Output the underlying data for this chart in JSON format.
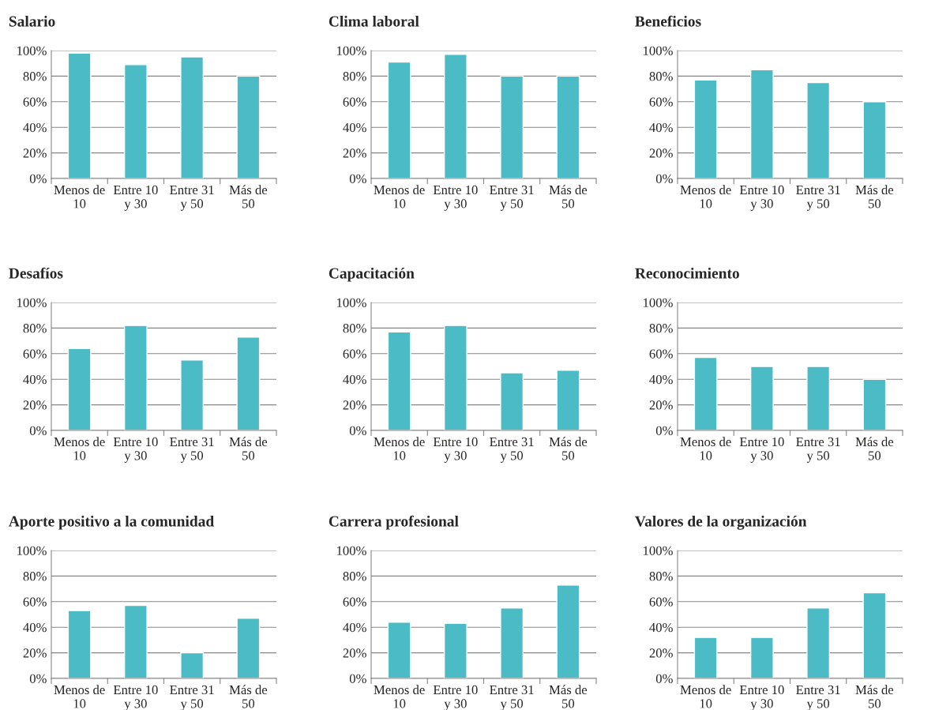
{
  "chart_data": [
    {
      "type": "bar",
      "title": "Salario",
      "categories": [
        "Menos de\n10",
        "Entre 10\ny 30",
        "Entre 31\ny 50",
        "Más de\n50"
      ],
      "values": [
        98,
        89,
        95,
        80
      ],
      "color": "#4bbcc6",
      "ylim": [
        0,
        100
      ],
      "yticks": [
        {
          "value": 0,
          "label": "0%"
        },
        {
          "value": 20,
          "label": "20%"
        },
        {
          "value": 40,
          "label": "40%"
        },
        {
          "value": 60,
          "label": "60%"
        },
        {
          "value": 80,
          "label": "80%"
        },
        {
          "value": 100,
          "label": "100%"
        }
      ],
      "grid": "y"
    },
    {
      "type": "bar",
      "title": "Clima laboral",
      "categories": [
        "Menos de\n10",
        "Entre 10\ny 30",
        "Entre 31\ny 50",
        "Más de\n50"
      ],
      "values": [
        91,
        97,
        80,
        80
      ],
      "color": "#4bbcc6",
      "ylim": [
        0,
        100
      ],
      "yticks": [
        {
          "value": 0,
          "label": "0%"
        },
        {
          "value": 20,
          "label": "20%"
        },
        {
          "value": 40,
          "label": "40%"
        },
        {
          "value": 60,
          "label": "60%"
        },
        {
          "value": 80,
          "label": "80%"
        },
        {
          "value": 100,
          "label": "100%"
        }
      ],
      "grid": "y"
    },
    {
      "type": "bar",
      "title": "Beneficios",
      "categories": [
        "Menos de\n10",
        "Entre 10\ny 30",
        "Entre 31\ny 50",
        "Más de\n50"
      ],
      "values": [
        77,
        85,
        75,
        60
      ],
      "color": "#4bbcc6",
      "ylim": [
        0,
        100
      ],
      "yticks": [
        {
          "value": 0,
          "label": "0%"
        },
        {
          "value": 20,
          "label": "20%"
        },
        {
          "value": 40,
          "label": "40%"
        },
        {
          "value": 60,
          "label": "60%"
        },
        {
          "value": 80,
          "label": "80%"
        },
        {
          "value": 100,
          "label": "100%"
        }
      ],
      "grid": "y"
    },
    {
      "type": "bar",
      "title": "Desafíos",
      "categories": [
        "Menos de\n10",
        "Entre 10\ny 30",
        "Entre 31\ny 50",
        "Más de\n50"
      ],
      "values": [
        64,
        82,
        55,
        73
      ],
      "color": "#4bbcc6",
      "ylim": [
        0,
        100
      ],
      "yticks": [
        {
          "value": 0,
          "label": "0%"
        },
        {
          "value": 20,
          "label": "20%"
        },
        {
          "value": 40,
          "label": "40%"
        },
        {
          "value": 60,
          "label": "60%"
        },
        {
          "value": 80,
          "label": "80%"
        },
        {
          "value": 100,
          "label": "100%"
        }
      ],
      "grid": "y"
    },
    {
      "type": "bar",
      "title": "Capacitación",
      "categories": [
        "Menos de\n10",
        "Entre 10\ny 30",
        "Entre 31\ny 50",
        "Más de\n50"
      ],
      "values": [
        77,
        82,
        45,
        47
      ],
      "color": "#4bbcc6",
      "ylim": [
        0,
        100
      ],
      "yticks": [
        {
          "value": 0,
          "label": "0%"
        },
        {
          "value": 20,
          "label": "20%"
        },
        {
          "value": 40,
          "label": "40%"
        },
        {
          "value": 60,
          "label": "60%"
        },
        {
          "value": 80,
          "label": "80%"
        },
        {
          "value": 100,
          "label": "100%"
        }
      ],
      "grid": "y"
    },
    {
      "type": "bar",
      "title": "Reconocimiento",
      "categories": [
        "Menos de\n10",
        "Entre 10\ny 30",
        "Entre 31\ny 50",
        "Más de\n50"
      ],
      "values": [
        57,
        50,
        50,
        40
      ],
      "color": "#4bbcc6",
      "ylim": [
        0,
        100
      ],
      "yticks": [
        {
          "value": 0,
          "label": "0%"
        },
        {
          "value": 20,
          "label": "20%"
        },
        {
          "value": 40,
          "label": "40%"
        },
        {
          "value": 60,
          "label": "60%"
        },
        {
          "value": 80,
          "label": "80%"
        },
        {
          "value": 100,
          "label": "100%"
        }
      ],
      "grid": "y"
    },
    {
      "type": "bar",
      "title": "Aporte positivo a la comunidad",
      "categories": [
        "Menos de\n10",
        "Entre 10\ny 30",
        "Entre 31\ny 50",
        "Más de\n50"
      ],
      "values": [
        53,
        57,
        20,
        47
      ],
      "color": "#4bbcc6",
      "ylim": [
        0,
        100
      ],
      "yticks": [
        {
          "value": 0,
          "label": "0%"
        },
        {
          "value": 20,
          "label": "20%"
        },
        {
          "value": 40,
          "label": "40%"
        },
        {
          "value": 60,
          "label": "60%"
        },
        {
          "value": 80,
          "label": "80%"
        },
        {
          "value": 100,
          "label": "100%"
        }
      ],
      "grid": "y"
    },
    {
      "type": "bar",
      "title": "Carrera profesional",
      "categories": [
        "Menos de\n10",
        "Entre 10\ny 30",
        "Entre 31\ny 50",
        "Más de\n50"
      ],
      "values": [
        44,
        43,
        55,
        73
      ],
      "color": "#4bbcc6",
      "ylim": [
        0,
        100
      ],
      "yticks": [
        {
          "value": 0,
          "label": "0%"
        },
        {
          "value": 20,
          "label": "20%"
        },
        {
          "value": 40,
          "label": "40%"
        },
        {
          "value": 60,
          "label": "60%"
        },
        {
          "value": 80,
          "label": "80%"
        },
        {
          "value": 100,
          "label": "100%"
        }
      ],
      "grid": "y"
    },
    {
      "type": "bar",
      "title": "Valores de la organización",
      "categories": [
        "Menos de\n10",
        "Entre 10\ny 30",
        "Entre 31\ny 50",
        "Más de\n50"
      ],
      "values": [
        32,
        32,
        55,
        67
      ],
      "color": "#4bbcc6",
      "ylim": [
        0,
        100
      ],
      "yticks": [
        {
          "value": 0,
          "label": "0%"
        },
        {
          "value": 20,
          "label": "20%"
        },
        {
          "value": 40,
          "label": "40%"
        },
        {
          "value": 60,
          "label": "60%"
        },
        {
          "value": 80,
          "label": "80%"
        },
        {
          "value": 100,
          "label": "100%"
        }
      ],
      "grid": "y"
    }
  ]
}
